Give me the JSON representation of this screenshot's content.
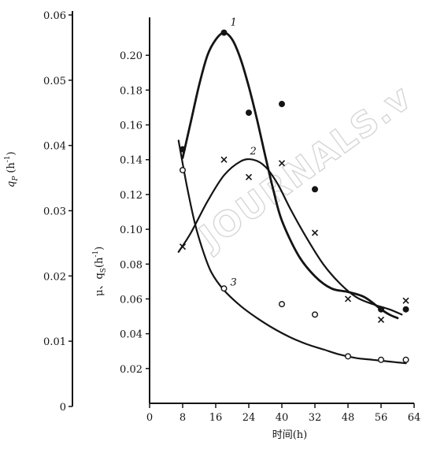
{
  "chart_data": {
    "type": "line",
    "title": "",
    "xlabel": "时间(h)",
    "left_axis": {
      "label_symbol": "q",
      "label_sub": "P",
      "label_unit": "(h",
      "label_exp": "-1",
      "label_close": ")",
      "ylim": [
        0,
        0.06
      ],
      "ticks": [
        "0",
        "0.01",
        "0.02",
        "0.03",
        "0.04",
        "0.05",
        "0.06"
      ]
    },
    "right_axis": {
      "label_main": "μ、q",
      "label_sub": "S",
      "label_unit": "(h",
      "label_exp": "-1",
      "label_close": ")",
      "ylim": [
        0,
        0.22
      ],
      "ticks": [
        "0.02",
        "0.04",
        "0.06",
        "0.08",
        "0.10",
        "0.12",
        "0.14",
        "0.16",
        "0.18",
        "0.20"
      ]
    },
    "xlim": [
      0,
      64
    ],
    "x_ticks": [
      "0",
      "8",
      "16",
      "24",
      "40",
      "32",
      "48",
      "56",
      "64"
    ],
    "grid": false,
    "series": [
      {
        "name": "1",
        "marker": "filled-circle",
        "points": [
          [
            8,
            0.146
          ],
          [
            18,
            0.213
          ],
          [
            24,
            0.167
          ],
          [
            32,
            0.172
          ],
          [
            40,
            0.123
          ],
          [
            56,
            0.054
          ],
          [
            62,
            0.054
          ]
        ],
        "curve": [
          [
            8,
            0.141
          ],
          [
            10,
            0.162
          ],
          [
            12,
            0.183
          ],
          [
            14,
            0.2
          ],
          [
            16,
            0.209
          ],
          [
            18,
            0.213
          ],
          [
            20,
            0.209
          ],
          [
            22,
            0.198
          ],
          [
            24,
            0.182
          ],
          [
            26,
            0.163
          ],
          [
            28,
            0.142
          ],
          [
            30,
            0.122
          ],
          [
            32,
            0.105
          ],
          [
            36,
            0.085
          ],
          [
            40,
            0.073
          ],
          [
            44,
            0.066
          ],
          [
            48,
            0.064
          ],
          [
            52,
            0.061
          ],
          [
            56,
            0.054
          ],
          [
            58,
            0.051
          ],
          [
            60,
            0.049
          ]
        ]
      },
      {
        "name": "2",
        "marker": "cross",
        "points": [
          [
            8,
            0.09
          ],
          [
            18,
            0.14
          ],
          [
            24,
            0.13
          ],
          [
            32,
            0.138
          ],
          [
            40,
            0.098
          ],
          [
            48,
            0.06
          ],
          [
            56,
            0.048
          ],
          [
            62,
            0.059
          ]
        ],
        "curve": [
          [
            7,
            0.087
          ],
          [
            10,
            0.098
          ],
          [
            14,
            0.116
          ],
          [
            18,
            0.131
          ],
          [
            22,
            0.139
          ],
          [
            25,
            0.14
          ],
          [
            28,
            0.136
          ],
          [
            31,
            0.126
          ],
          [
            34,
            0.112
          ],
          [
            38,
            0.095
          ],
          [
            42,
            0.08
          ],
          [
            46,
            0.069
          ],
          [
            50,
            0.061
          ],
          [
            54,
            0.057
          ],
          [
            58,
            0.054
          ],
          [
            61,
            0.051
          ]
        ]
      },
      {
        "name": "3",
        "marker": "open-circle",
        "points": [
          [
            8,
            0.134
          ],
          [
            18,
            0.066
          ],
          [
            32,
            0.057
          ],
          [
            40,
            0.051
          ],
          [
            48,
            0.027
          ],
          [
            56,
            0.025
          ],
          [
            62,
            0.025
          ]
        ],
        "curve": [
          [
            7,
            0.151
          ],
          [
            9,
            0.125
          ],
          [
            11,
            0.103
          ],
          [
            13,
            0.087
          ],
          [
            15,
            0.075
          ],
          [
            18,
            0.065
          ],
          [
            22,
            0.056
          ],
          [
            26,
            0.049
          ],
          [
            30,
            0.043
          ],
          [
            34,
            0.038
          ],
          [
            38,
            0.034
          ],
          [
            42,
            0.031
          ],
          [
            46,
            0.028
          ],
          [
            50,
            0.026
          ],
          [
            54,
            0.025
          ],
          [
            58,
            0.024
          ],
          [
            62,
            0.023
          ]
        ]
      }
    ],
    "watermark": "JOURNALS.v"
  }
}
